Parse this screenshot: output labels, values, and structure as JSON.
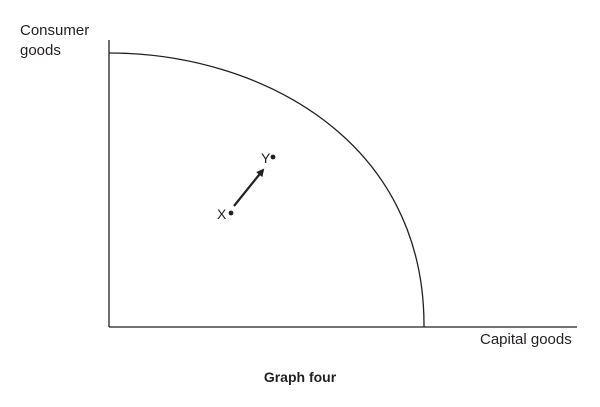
{
  "axes": {
    "y_label_lines": [
      "Consumer",
      "goods"
    ],
    "x_label": "Capital goods"
  },
  "points": {
    "start": "X",
    "end": "Y"
  },
  "caption": "Graph four",
  "colors": {
    "ink": "#231f20",
    "background": "#ffffff"
  }
}
